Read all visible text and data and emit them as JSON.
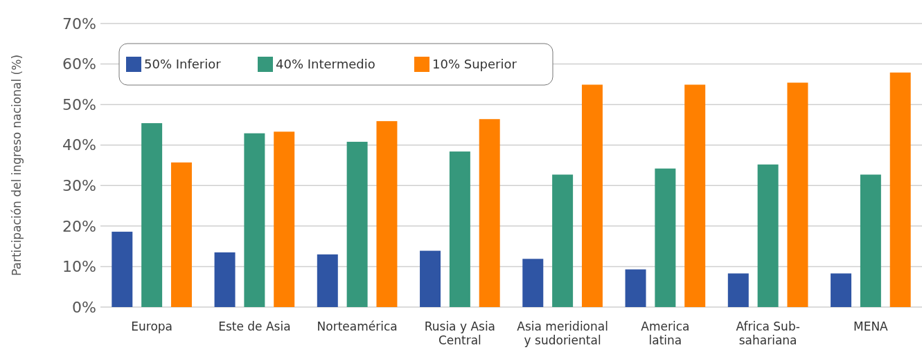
{
  "chart_data": {
    "type": "bar",
    "ylabel": "Participación del ingreso nacional (%)",
    "categories": [
      "Europa",
      "Este de Asia",
      "Norteamérica",
      "Rusia y Asia\nCentral",
      "Asia meridional\ny sudoriental",
      "America\nlatina",
      "Africa Sub-\nsahariana",
      "MENA"
    ],
    "series": [
      {
        "name": "50% Inferior",
        "color": "#2f55a4",
        "values": [
          18.6,
          13.5,
          13.0,
          13.9,
          11.9,
          9.3,
          8.3,
          8.3
        ]
      },
      {
        "name": "40% Intermedio",
        "color": "#36987c",
        "values": [
          45.4,
          42.9,
          40.8,
          38.4,
          32.7,
          34.2,
          35.2,
          32.7
        ]
      },
      {
        "name": "10% Superior",
        "color": "#ff8000",
        "values": [
          35.7,
          43.3,
          45.9,
          46.4,
          54.9,
          54.9,
          55.4,
          57.9
        ]
      }
    ],
    "ylim": [
      0,
      70
    ],
    "yticks": [
      {
        "value": 0,
        "label": "0%"
      },
      {
        "value": 10,
        "label": "10%"
      },
      {
        "value": 20,
        "label": "20%"
      },
      {
        "value": 30,
        "label": "30%"
      },
      {
        "value": 40,
        "label": "40%"
      },
      {
        "value": 50,
        "label": "50%"
      },
      {
        "value": 60,
        "label": "60%"
      },
      {
        "value": 70,
        "label": "70%"
      }
    ],
    "grid": "y",
    "legend": "top left"
  }
}
